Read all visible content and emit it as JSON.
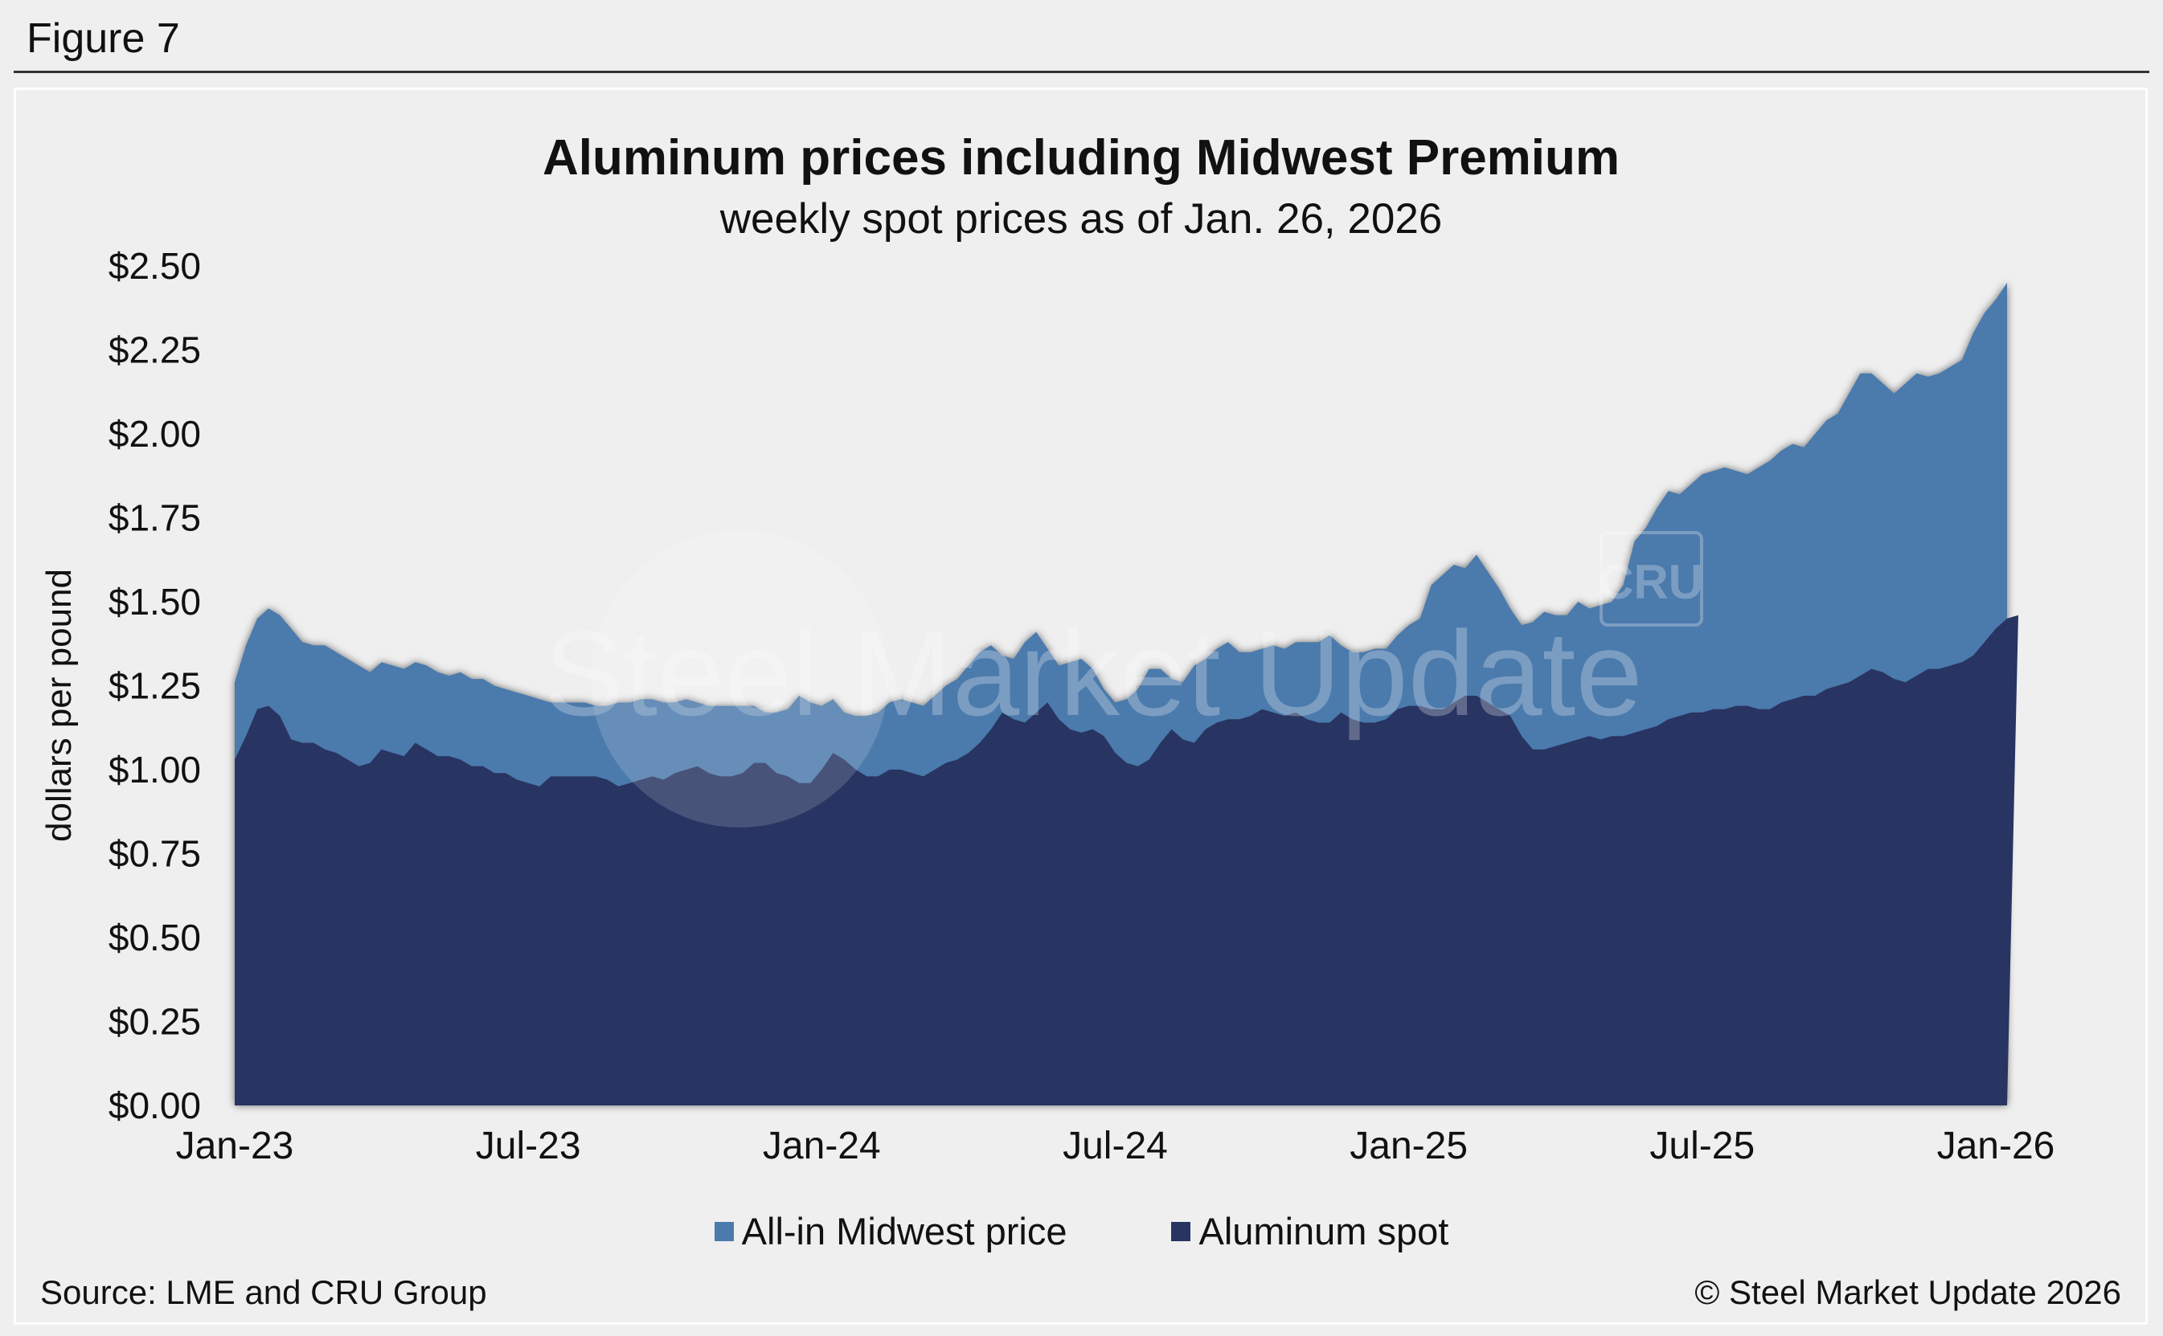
{
  "figure_label": "Figure 7",
  "source": "Source: LME and CRU Group",
  "copyright": "© Steel Market Update 2026",
  "watermark": {
    "text": "Steel Market Update",
    "badge": "CRU"
  },
  "colors": {
    "all_in": "#4b7aac",
    "spot": "#283462",
    "background": "#efefef"
  },
  "chart_data": {
    "type": "area",
    "title": "Aluminum prices including Midwest Premium",
    "subtitle": "weekly spot prices as of Jan. 26, 2026",
    "ylabel": "dollars per pound",
    "xlabel": "",
    "ylim": [
      0,
      2.5
    ],
    "y_ticks": [
      0,
      0.25,
      0.5,
      0.75,
      1.0,
      1.25,
      1.5,
      1.75,
      2.0,
      2.25,
      2.5
    ],
    "y_tick_labels": [
      "$0.00",
      "$0.25",
      "$0.50",
      "$0.75",
      "$1.00",
      "$1.25",
      "$1.50",
      "$1.75",
      "$2.00",
      "$2.25",
      "$2.50"
    ],
    "x_tick_labels": [
      "Jan-23",
      "Jul-23",
      "Jan-24",
      "Jul-24",
      "Jan-25",
      "Jul-25",
      "Jan-26"
    ],
    "x_ticks_week_index": [
      0,
      26,
      52,
      78,
      104,
      130,
      156
    ],
    "legend": [
      "All-in Midwest price",
      "Aluminum spot"
    ],
    "series": [
      {
        "name": "All-in Midwest price",
        "values": [
          1.26,
          1.37,
          1.45,
          1.48,
          1.46,
          1.42,
          1.38,
          1.37,
          1.37,
          1.35,
          1.33,
          1.31,
          1.29,
          1.32,
          1.31,
          1.3,
          1.32,
          1.31,
          1.29,
          1.28,
          1.29,
          1.27,
          1.27,
          1.25,
          1.24,
          1.23,
          1.22,
          1.21,
          1.2,
          1.2,
          1.2,
          1.2,
          1.19,
          1.19,
          1.2,
          1.2,
          1.21,
          1.21,
          1.2,
          1.2,
          1.21,
          1.2,
          1.19,
          1.19,
          1.19,
          1.19,
          1.19,
          1.17,
          1.17,
          1.18,
          1.22,
          1.2,
          1.19,
          1.21,
          1.17,
          1.16,
          1.16,
          1.17,
          1.2,
          1.21,
          1.2,
          1.19,
          1.22,
          1.25,
          1.27,
          1.31,
          1.35,
          1.37,
          1.34,
          1.33,
          1.38,
          1.41,
          1.36,
          1.31,
          1.32,
          1.33,
          1.3,
          1.24,
          1.2,
          1.21,
          1.24,
          1.3,
          1.3,
          1.27,
          1.26,
          1.31,
          1.33,
          1.36,
          1.38,
          1.35,
          1.35,
          1.36,
          1.37,
          1.36,
          1.38,
          1.38,
          1.38,
          1.4,
          1.37,
          1.35,
          1.35,
          1.36,
          1.36,
          1.4,
          1.43,
          1.45,
          1.55,
          1.58,
          1.61,
          1.6,
          1.64,
          1.59,
          1.54,
          1.48,
          1.43,
          1.44,
          1.47,
          1.46,
          1.46,
          1.5,
          1.48,
          1.49,
          1.5,
          1.55,
          1.68,
          1.72,
          1.78,
          1.83,
          1.82,
          1.85,
          1.88,
          1.89,
          1.9,
          1.89,
          1.88,
          1.9,
          1.92,
          1.95,
          1.97,
          1.96,
          2.0,
          2.04,
          2.06,
          2.12,
          2.18,
          2.18,
          2.15,
          2.12,
          2.15,
          2.18,
          2.17,
          2.18,
          2.2,
          2.22,
          2.3,
          2.36,
          2.4,
          2.45
        ]
      },
      {
        "name": "Aluminum spot",
        "values": [
          1.03,
          1.1,
          1.18,
          1.19,
          1.16,
          1.09,
          1.08,
          1.08,
          1.06,
          1.05,
          1.03,
          1.01,
          1.02,
          1.06,
          1.05,
          1.04,
          1.08,
          1.06,
          1.04,
          1.04,
          1.03,
          1.01,
          1.01,
          0.99,
          0.99,
          0.97,
          0.96,
          0.95,
          0.98,
          0.98,
          0.98,
          0.98,
          0.98,
          0.97,
          0.95,
          0.96,
          0.97,
          0.98,
          0.97,
          0.99,
          1.0,
          1.01,
          0.99,
          0.98,
          0.98,
          0.99,
          1.02,
          1.02,
          0.99,
          0.98,
          0.96,
          0.96,
          1.0,
          1.05,
          1.03,
          1.0,
          0.98,
          0.98,
          1.0,
          1.0,
          0.99,
          0.98,
          1.0,
          1.02,
          1.03,
          1.05,
          1.08,
          1.12,
          1.17,
          1.15,
          1.14,
          1.17,
          1.2,
          1.15,
          1.12,
          1.11,
          1.12,
          1.1,
          1.05,
          1.02,
          1.01,
          1.03,
          1.08,
          1.12,
          1.09,
          1.08,
          1.12,
          1.14,
          1.15,
          1.15,
          1.16,
          1.18,
          1.17,
          1.16,
          1.17,
          1.15,
          1.14,
          1.14,
          1.17,
          1.15,
          1.14,
          1.14,
          1.15,
          1.18,
          1.19,
          1.19,
          1.18,
          1.18,
          1.2,
          1.22,
          1.22,
          1.2,
          1.18,
          1.16,
          1.1,
          1.06,
          1.06,
          1.07,
          1.08,
          1.09,
          1.1,
          1.09,
          1.1,
          1.1,
          1.11,
          1.12,
          1.13,
          1.15,
          1.16,
          1.17,
          1.17,
          1.18,
          1.18,
          1.19,
          1.19,
          1.18,
          1.18,
          1.2,
          1.21,
          1.22,
          1.22,
          1.24,
          1.25,
          1.26,
          1.28,
          1.3,
          1.29,
          1.27,
          1.26,
          1.28,
          1.3,
          1.3,
          1.31,
          1.32,
          1.34,
          1.38,
          1.42,
          1.45,
          1.46
        ]
      }
    ]
  }
}
